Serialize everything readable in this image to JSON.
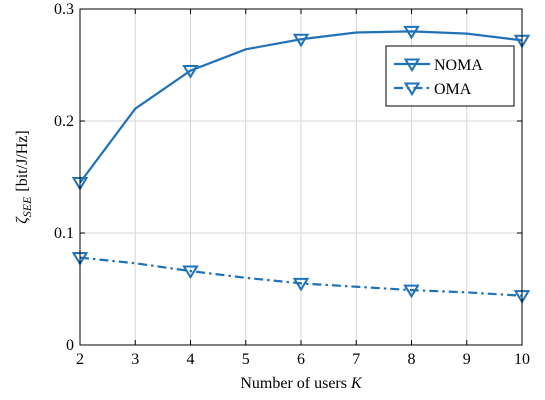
{
  "chart_data": {
    "type": "line",
    "x": [
      2,
      3,
      4,
      5,
      6,
      7,
      8,
      9,
      10
    ],
    "series": [
      {
        "name": "NOMA",
        "values": [
          0.145,
          0.211,
          0.245,
          0.264,
          0.273,
          0.279,
          0.28,
          0.278,
          0.272
        ],
        "marker_indices": [
          0,
          2,
          4,
          6,
          8
        ],
        "line_style": "solid",
        "color": "#1f72b8"
      },
      {
        "name": "OMA",
        "values": [
          0.078,
          0.073,
          0.066,
          0.06,
          0.055,
          0.052,
          0.049,
          0.047,
          0.044
        ],
        "marker_indices": [
          0,
          2,
          4,
          6,
          8
        ],
        "line_style": "dash-dot",
        "color": "#1f72b8"
      }
    ],
    "xlabel": "Number of users K",
    "xlabel_main": "Number of users ",
    "xlabel_var": "K",
    "ylabel": "ζSEE [bit/J/Hz]",
    "ylabel_zeta": "ζ",
    "ylabel_sub": "SEE",
    "ylabel_unit": "[bit/J/Hz]",
    "xlim": [
      2,
      10
    ],
    "ylim": [
      0,
      0.3
    ],
    "xticks": [
      2,
      3,
      4,
      5,
      6,
      7,
      8,
      9,
      10
    ],
    "xtick_labels": [
      "2",
      "3",
      "4",
      "5",
      "6",
      "7",
      "8",
      "9",
      "10"
    ],
    "yticks": [
      0,
      0.1,
      0.2,
      0.3
    ],
    "ytick_labels": [
      "0",
      "0.1",
      "0.2",
      "0.3"
    ],
    "grid": true,
    "legend_position": "top-right",
    "marker": "downward-triangle"
  }
}
